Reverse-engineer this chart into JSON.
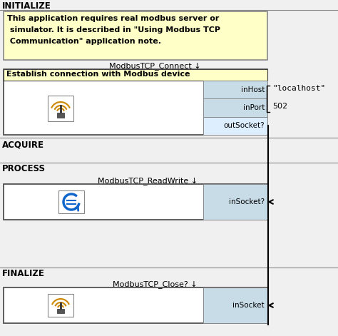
{
  "bg_color": "#f0f0f0",
  "white": "#ffffff",
  "yellow_note": "#ffffc8",
  "light_blue": "#c8dce8",
  "light_yellow_header": "#fffff0",
  "note_text_line1": "This application requires real modbus server or",
  "note_text_line2": " simulator. It is described in \"Using Modbus TCP",
  "note_text_line3": " Communication\" application note.",
  "connect_label": "ModbusTCP_Connect ↓",
  "connect_box_title": "Establish connection with Modbus device",
  "connect_ports": [
    "inHost",
    "inPort",
    "outSocket?"
  ],
  "connect_port_values_host": "\"localhost\"",
  "connect_port_values_port": "502",
  "readwrite_label": "ModbusTCP_ReadWrite ↓",
  "readwrite_port": "inSocket?",
  "close_label": "ModbusTCP_Close? ↓",
  "close_port": "inSocket",
  "line_color": "#000000",
  "border_dark": "#444444",
  "border_mid": "#888888"
}
